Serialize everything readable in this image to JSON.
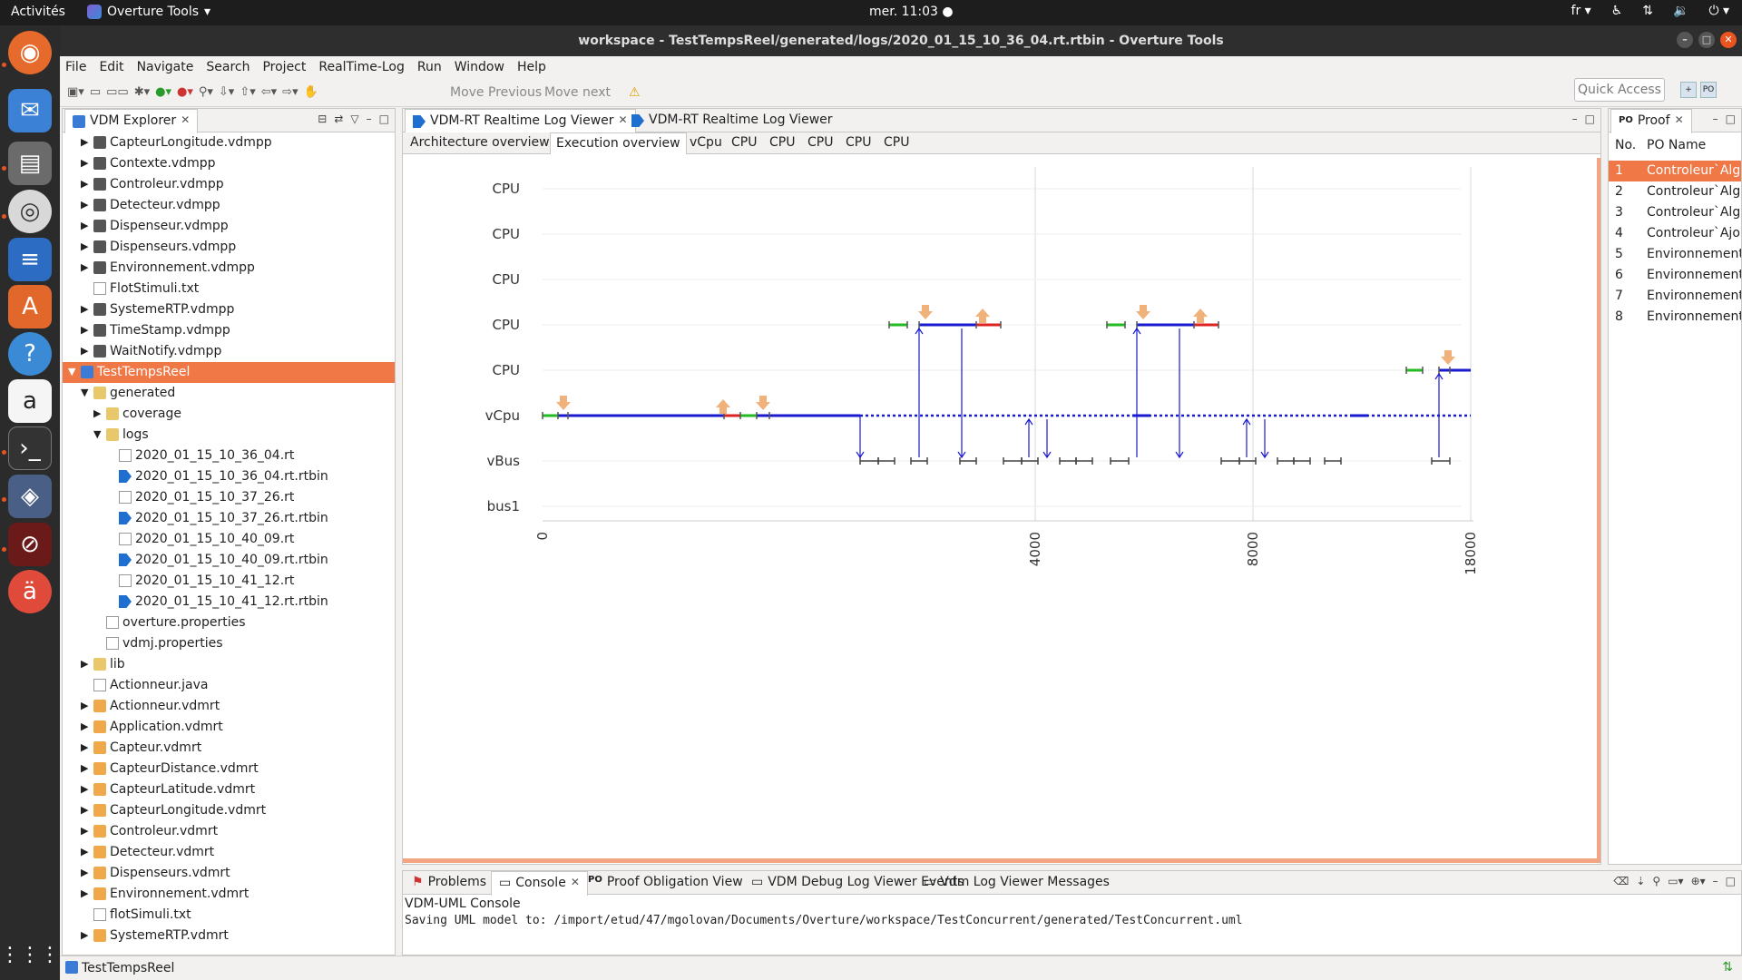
{
  "topbar": {
    "activities": "Activités",
    "app_name": "Overture Tools",
    "clock": "mer. 11:03 ●",
    "locale": "fr"
  },
  "window": {
    "title": "workspace - TestTempsReel/generated/logs/2020_01_15_10_36_04.rt.rtbin - Overture Tools"
  },
  "menu": [
    "File",
    "Edit",
    "Navigate",
    "Search",
    "Project",
    "RealTime-Log",
    "Run",
    "Window",
    "Help"
  ],
  "toolbar": {
    "move_previous": "Move Previous",
    "move_next": "Move next",
    "quick_access": "Quick Access"
  },
  "explorer": {
    "tab_label": "VDM Explorer",
    "items": [
      {
        "label": "CapteurLongitude.vdmpp",
        "kind": "vdm",
        "indent": 1,
        "arrow": "▶"
      },
      {
        "label": "Contexte.vdmpp",
        "kind": "vdm",
        "indent": 1,
        "arrow": "▶"
      },
      {
        "label": "Controleur.vdmpp",
        "kind": "vdm",
        "indent": 1,
        "arrow": "▶"
      },
      {
        "label": "Detecteur.vdmpp",
        "kind": "vdm",
        "indent": 1,
        "arrow": "▶"
      },
      {
        "label": "Dispenseur.vdmpp",
        "kind": "vdm",
        "indent": 1,
        "arrow": "▶"
      },
      {
        "label": "Dispenseurs.vdmpp",
        "kind": "vdm",
        "indent": 1,
        "arrow": "▶"
      },
      {
        "label": "Environnement.vdmpp",
        "kind": "vdm",
        "indent": 1,
        "arrow": "▶"
      },
      {
        "label": "FlotStimuli.txt",
        "kind": "txt",
        "indent": 1,
        "arrow": ""
      },
      {
        "label": "SystemeRTP.vdmpp",
        "kind": "vdm",
        "indent": 1,
        "arrow": "▶"
      },
      {
        "label": "TimeStamp.vdmpp",
        "kind": "vdm",
        "indent": 1,
        "arrow": "▶"
      },
      {
        "label": "WaitNotify.vdmpp",
        "kind": "vdm",
        "indent": 1,
        "arrow": "▶"
      },
      {
        "label": "TestTempsReel",
        "kind": "proj",
        "indent": 0,
        "arrow": "▼",
        "selected": true
      },
      {
        "label": "generated",
        "kind": "folder",
        "indent": 1,
        "arrow": "▼"
      },
      {
        "label": "coverage",
        "kind": "folder",
        "indent": 2,
        "arrow": "▶"
      },
      {
        "label": "logs",
        "kind": "folder",
        "indent": 2,
        "arrow": "▼"
      },
      {
        "label": "2020_01_15_10_36_04.rt",
        "kind": "txt",
        "indent": 3,
        "arrow": ""
      },
      {
        "label": "2020_01_15_10_36_04.rt.rtbin",
        "kind": "rtbin",
        "indent": 3,
        "arrow": ""
      },
      {
        "label": "2020_01_15_10_37_26.rt",
        "kind": "txt",
        "indent": 3,
        "arrow": ""
      },
      {
        "label": "2020_01_15_10_37_26.rt.rtbin",
        "kind": "rtbin",
        "indent": 3,
        "arrow": ""
      },
      {
        "label": "2020_01_15_10_40_09.rt",
        "kind": "txt",
        "indent": 3,
        "arrow": ""
      },
      {
        "label": "2020_01_15_10_40_09.rt.rtbin",
        "kind": "rtbin",
        "indent": 3,
        "arrow": ""
      },
      {
        "label": "2020_01_15_10_41_12.rt",
        "kind": "txt",
        "indent": 3,
        "arrow": ""
      },
      {
        "label": "2020_01_15_10_41_12.rt.rtbin",
        "kind": "rtbin",
        "indent": 3,
        "arrow": ""
      },
      {
        "label": "overture.properties",
        "kind": "txt",
        "indent": 2,
        "arrow": ""
      },
      {
        "label": "vdmj.properties",
        "kind": "txt",
        "indent": 2,
        "arrow": ""
      },
      {
        "label": "lib",
        "kind": "folder",
        "indent": 1,
        "arrow": "▶"
      },
      {
        "label": "Actionneur.java",
        "kind": "txt",
        "indent": 1,
        "arrow": ""
      },
      {
        "label": "Actionneur.vdmrt",
        "kind": "vdmrt",
        "indent": 1,
        "arrow": "▶"
      },
      {
        "label": "Application.vdmrt",
        "kind": "vdmrt",
        "indent": 1,
        "arrow": "▶"
      },
      {
        "label": "Capteur.vdmrt",
        "kind": "vdmrt",
        "indent": 1,
        "arrow": "▶"
      },
      {
        "label": "CapteurDistance.vdmrt",
        "kind": "vdmrt",
        "indent": 1,
        "arrow": "▶"
      },
      {
        "label": "CapteurLatitude.vdmrt",
        "kind": "vdmrt",
        "indent": 1,
        "arrow": "▶"
      },
      {
        "label": "CapteurLongitude.vdmrt",
        "kind": "vdmrt",
        "indent": 1,
        "arrow": "▶"
      },
      {
        "label": "Controleur.vdmrt",
        "kind": "vdmrt",
        "indent": 1,
        "arrow": "▶"
      },
      {
        "label": "Detecteur.vdmrt",
        "kind": "vdmrt",
        "indent": 1,
        "arrow": "▶"
      },
      {
        "label": "Dispenseurs.vdmrt",
        "kind": "vdmrt",
        "indent": 1,
        "arrow": "▶"
      },
      {
        "label": "Environnement.vdmrt",
        "kind": "vdmrt",
        "indent": 1,
        "arrow": "▶"
      },
      {
        "label": "flotSimuli.txt",
        "kind": "txt",
        "indent": 1,
        "arrow": ""
      },
      {
        "label": "SystemeRTP.vdmrt",
        "kind": "vdmrt",
        "indent": 1,
        "arrow": "▶"
      }
    ]
  },
  "viewer": {
    "tabs": [
      "VDM-RT Realtime Log Viewer",
      "VDM-RT Realtime Log Viewer"
    ],
    "subtabs": [
      "Architecture overview",
      "Execution overview",
      "vCpu",
      "CPU",
      "CPU",
      "CPU",
      "CPU",
      "CPU"
    ],
    "active_subtab": 1
  },
  "chart_data": {
    "type": "timeline",
    "rows": [
      "CPU",
      "CPU",
      "CPU",
      "CPU",
      "CPU",
      "vCpu",
      "vBus",
      "bus1"
    ],
    "x_ticks": [
      "0",
      "4000",
      "8000",
      "18000"
    ],
    "colors": {
      "thread": "#1a1acf",
      "start": "#22bb22",
      "stop": "#dd2222",
      "swap": "#f0b27a",
      "bus": "#444444",
      "grid": "#d8d8d8"
    }
  },
  "proof": {
    "tab_label": "Proof",
    "col_no": "No.",
    "col_name": "PO Name",
    "rows": [
      {
        "no": "1",
        "name": "Controleur`Alg",
        "selected": true
      },
      {
        "no": "2",
        "name": "Controleur`Alg"
      },
      {
        "no": "3",
        "name": "Controleur`Alg"
      },
      {
        "no": "4",
        "name": "Controleur`Ajo"
      },
      {
        "no": "5",
        "name": "Environnement"
      },
      {
        "no": "6",
        "name": "Environnement"
      },
      {
        "no": "7",
        "name": "Environnement"
      },
      {
        "no": "8",
        "name": "Environnement"
      }
    ]
  },
  "console": {
    "tabs": [
      "Problems",
      "Console",
      "Proof Obligation View",
      "VDM Debug Log Viewer Events",
      "Vdm Log Viewer Messages"
    ],
    "active_tab": 1,
    "subtitle": "VDM-UML Console",
    "line": "Saving UML model to: /import/etud/47/mgolovan/Documents/Overture/workspace/TestConcurrent/generated/TestConcurrent.uml"
  },
  "status": {
    "label": "TestTempsReel"
  }
}
